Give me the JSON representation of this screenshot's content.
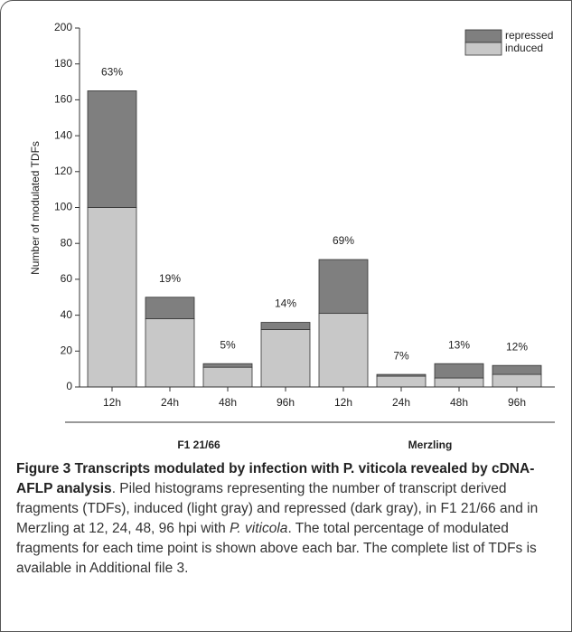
{
  "chart_data": {
    "type": "stacked_bar",
    "y_label": "Number of modulated TDFs",
    "categories": [
      "12h",
      "24h",
      "48h",
      "96h",
      "12h",
      "24h",
      "48h",
      "96h"
    ],
    "groups": [
      "F1 21/66",
      "Merzling"
    ],
    "series": [
      {
        "name": "induced",
        "color": "#c8c8c8",
        "values": [
          100,
          38,
          11,
          32,
          41,
          6,
          5,
          7
        ]
      },
      {
        "name": "repressed",
        "color": "#7f7f7f",
        "values": [
          65,
          12,
          2,
          4,
          30,
          1,
          8,
          5
        ]
      }
    ],
    "annotations": [
      "63%",
      "19%",
      "5%",
      "14%",
      "69%",
      "7%",
      "13%",
      "12%"
    ],
    "ylim": [
      0,
      200
    ],
    "yticks": [
      0,
      20,
      40,
      60,
      80,
      100,
      120,
      140,
      160,
      180,
      200
    ],
    "legend": "top-right"
  },
  "caption": {
    "title": "Figure 3 Transcripts modulated by infection with P. viticola revealed by cDNA-AFLP analysis",
    "body": [
      ". Piled histograms representing the number of transcript derived fragments (TDFs), induced (light gray) and repressed (dark gray), in F1 21/66 and in Merzling at 12, 24, 48, 96 hpi with ",
      "P. viticola",
      ". The total percentage of modulated fragments for each time point is shown above each bar. The complete list of TDFs is available in Additional file 3."
    ]
  }
}
